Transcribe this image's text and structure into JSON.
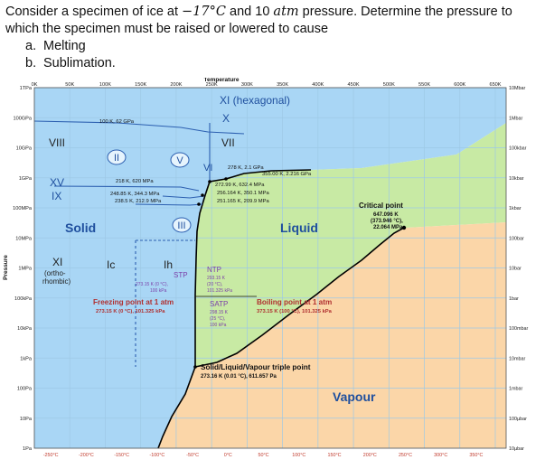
{
  "question": {
    "line1_pre": "Consider a specimen of ice at ",
    "temp": "−17°C",
    "line1_mid": " and 10 ",
    "unit": "atm",
    "line1_post": " pressure. Determine the pressure to",
    "line2": "which the specimen must be raised or lowered to cause",
    "items": [
      {
        "letter": "a.",
        "text": "Melting"
      },
      {
        "letter": "b.",
        "text": "Sublimation."
      }
    ]
  },
  "colors": {
    "solid": "#a9d6f5",
    "liquid": "#c8eaa4",
    "vapour": "#fbd6a8",
    "grid": "#9ec9e6",
    "phase_label": "#1f4f9e",
    "annotation": "#7b3fa8",
    "boundary": "#000000"
  },
  "chart_data": {
    "type": "phase-diagram",
    "top_axis_title": "Temperature",
    "left_axis_title": "Pressure",
    "top_ticks": [
      "0K",
      "50K",
      "100K",
      "150K",
      "200K",
      "250K",
      "300K",
      "350K",
      "400K",
      "450K",
      "500K",
      "550K",
      "600K",
      "650K"
    ],
    "bottom_ticks": [
      "-250°C",
      "-200°C",
      "-150°C",
      "-100°C",
      "-50°C",
      "0°C",
      "50°C",
      "100°C",
      "150°C",
      "200°C",
      "250°C",
      "300°C",
      "350°C"
    ],
    "left_ticks": [
      "1TPa",
      "100GPa",
      "10GPa",
      "1GPa",
      "100MPa",
      "10MPa",
      "1MPa",
      "100kPa",
      "10kPa",
      "1kPa",
      "100Pa",
      "10Pa",
      "1Pa"
    ],
    "right_ticks": [
      "10Mbar",
      "1Mbar",
      "100kbar",
      "10kbar",
      "1kbar",
      "100bar",
      "10bar",
      "1bar",
      "100mbar",
      "10mbar",
      "1mbar",
      "100µbar",
      "10µbar"
    ],
    "regions": [
      "Solid",
      "Liquid",
      "Vapour"
    ],
    "ice_phases": [
      "XI (hexagonal)",
      "X",
      "VIII",
      "VII",
      "II",
      "V",
      "VI",
      "XV",
      "IX",
      "III",
      "XI",
      "(ortho-",
      "rhombic)",
      "Ic",
      "Ih"
    ],
    "points": [
      {
        "label": "100 K, 62 GPa"
      },
      {
        "label": "278 K, 2.1 GPa"
      },
      {
        "label": "355.00 K, 2.216 GPa"
      },
      {
        "label": "218 K, 620 MPa"
      },
      {
        "label": "272.99 K, 632.4 MPa"
      },
      {
        "label": "248.85 K, 344.3 MPa"
      },
      {
        "label": "256.164 K, 350.1 MPa"
      },
      {
        "label": "238.5 K, 212.9 MPa"
      },
      {
        "label": "251.165 K, 209.9 MPa"
      }
    ],
    "critical_point": {
      "title": "Critical point",
      "line1": "647.096 K",
      "line2": "(373.946 °C),",
      "line3": "22.064 MPa"
    },
    "stp": {
      "title": "STP",
      "line1": "273.15 K (0 °C),",
      "line2": "100 kPa"
    },
    "ntp": {
      "title": "NTP",
      "line1": "293.15 K",
      "line2": "(20 °C),",
      "line3": "101.325 kPa"
    },
    "satp": {
      "title": "SATP",
      "line1": "298.15 K",
      "line2": "(25 °C),",
      "line3": "100 kPa"
    },
    "freezing": {
      "title": "Freezing point at 1 atm",
      "line1": "273.15 K (0 °C), 101.325 kPa"
    },
    "boiling": {
      "title": "Boiling point at 1 atm",
      "line1": "373.15 K (100 °C), 101.325 kPa"
    },
    "triple": {
      "title": "Solid/Liquid/Vapour triple point",
      "line1": "273.16 K (0.01 °C), 611.657 Pa"
    }
  }
}
